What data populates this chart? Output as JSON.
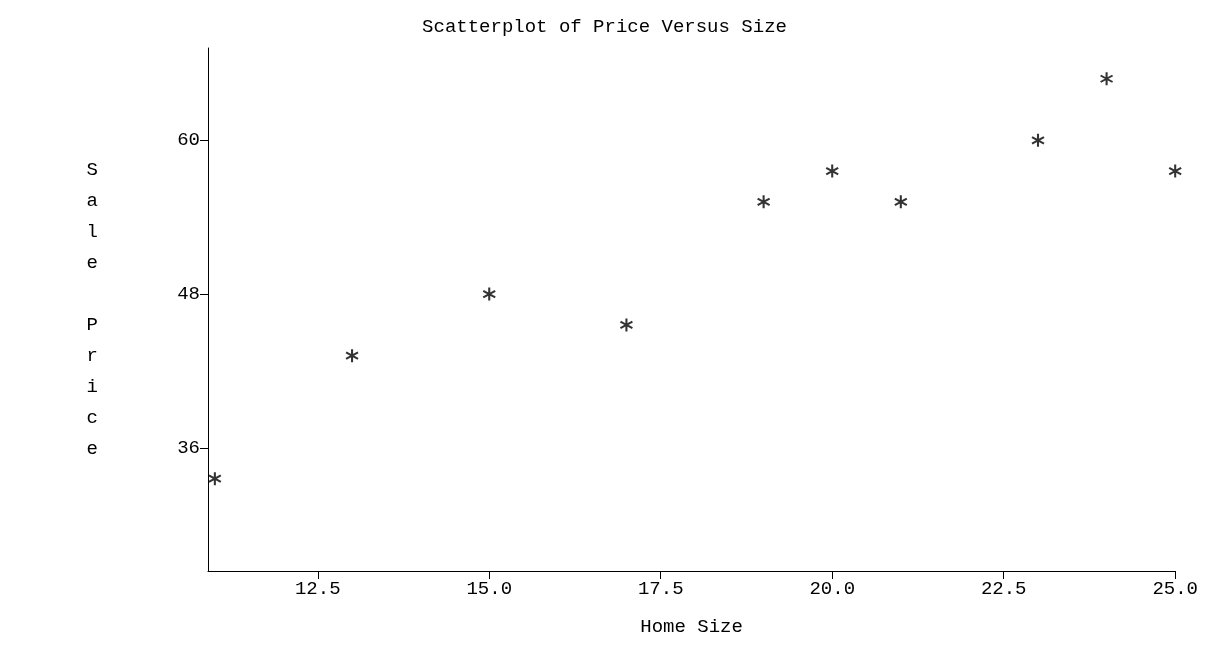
{
  "chart_data": {
    "type": "scatter",
    "title": "Scatterplot of Price Versus Size",
    "xlabel": "Home Size",
    "ylabel": "Sale Price",
    "x": [
      11,
      13,
      15,
      17,
      19,
      20,
      21,
      23,
      24,
      25
    ],
    "values": [
      33.6,
      43.2,
      48,
      45.6,
      55.2,
      57.6,
      55.2,
      60,
      64.8,
      57.6
    ],
    "color": "#000000",
    "marker": "cross",
    "xlim": [
      10.9,
      25.0
    ],
    "xticks": [
      {
        "value": 12.5,
        "label": "12.5"
      },
      {
        "value": 15,
        "label": "15.0"
      },
      {
        "value": 17.5,
        "label": "17.5"
      },
      {
        "value": 20,
        "label": "20.0"
      },
      {
        "value": 22.5,
        "label": "22.5"
      },
      {
        "value": 25,
        "label": "25.0"
      }
    ],
    "ylim": [
      26.4,
      67.2
    ],
    "yticks": [
      36,
      48,
      60
    ],
    "grid": false
  }
}
